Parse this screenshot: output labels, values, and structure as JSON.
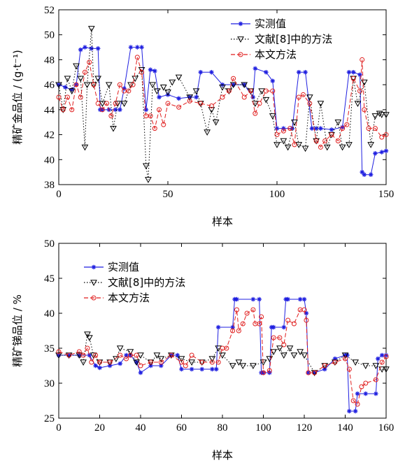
{
  "chart_data": [
    {
      "type": "line",
      "xlabel": "样本",
      "ylabel": "精矿金品位 / (g·t⁻¹)",
      "xlim": [
        0,
        150
      ],
      "ylim": [
        38,
        52
      ],
      "xticks": [
        0,
        50,
        100,
        150
      ],
      "yticks": [
        38,
        40,
        42,
        44,
        46,
        48,
        50,
        52
      ],
      "legend_position": "top-right",
      "series": [
        {
          "name": "实测值",
          "color": "#1f1fe0",
          "marker": "asterisk",
          "dash": "solid",
          "x": [
            0,
            3,
            6,
            8,
            10,
            12,
            15,
            18,
            19,
            20,
            23,
            26,
            28,
            30,
            33,
            36,
            38,
            40,
            42,
            44,
            46,
            50,
            55,
            60,
            63,
            65,
            70,
            75,
            80,
            85,
            89,
            90,
            95,
            98,
            100,
            103,
            107,
            110,
            113,
            116,
            118,
            120,
            125,
            130,
            133,
            135,
            138,
            139,
            140,
            143,
            145,
            148,
            150
          ],
          "y": [
            46,
            45.8,
            45.6,
            46,
            48.8,
            49,
            48.9,
            48.9,
            44,
            44,
            44,
            44,
            44,
            45.7,
            49,
            49,
            49,
            44,
            47.2,
            47.1,
            45,
            45.2,
            44.9,
            45,
            45,
            47,
            47,
            46,
            46,
            46,
            45,
            47.3,
            47,
            46.3,
            42.5,
            42.5,
            42.5,
            47,
            47,
            42.5,
            42.5,
            42.5,
            42.4,
            42.6,
            47,
            47,
            46.8,
            39,
            38.8,
            38.8,
            40.5,
            40.6,
            40.7
          ]
        },
        {
          "name": "文献[8]中的方法",
          "color": "#000000",
          "marker": "triangle",
          "dash": "dots",
          "x": [
            0,
            2,
            4,
            6,
            8,
            10,
            12,
            13,
            15,
            16,
            18,
            20,
            23,
            25,
            27,
            30,
            33,
            35,
            38,
            40,
            41,
            43,
            45,
            48,
            50,
            52,
            55,
            60,
            63,
            65,
            68,
            70,
            72,
            75,
            78,
            80,
            85,
            88,
            90,
            93,
            95,
            98,
            100,
            103,
            105,
            108,
            110,
            113,
            115,
            118,
            120,
            123,
            125,
            128,
            130,
            133,
            135,
            137,
            140,
            143,
            145,
            147,
            148,
            150
          ],
          "y": [
            46,
            44,
            46.5,
            45.5,
            47.5,
            46.5,
            41,
            46,
            50.5,
            46,
            46.5,
            44.5,
            46,
            42.5,
            44.5,
            44.5,
            46,
            46.5,
            47.2,
            39.5,
            38.4,
            46,
            45.5,
            45.8,
            45.4,
            46.2,
            46.6,
            45,
            45.5,
            44.5,
            42.2,
            44,
            43,
            45.8,
            45.5,
            46,
            46,
            45.5,
            44.5,
            45.5,
            44.8,
            43.5,
            41.2,
            41.5,
            41,
            43,
            41.2,
            40.9,
            45,
            41.5,
            44.5,
            41,
            42,
            43,
            41,
            41.2,
            46.5,
            44.5,
            46.2,
            41.2,
            43.5,
            43.7,
            43.6,
            43.6
          ]
        },
        {
          "name": "本文方法",
          "color": "#e01f1f",
          "marker": "circle",
          "dash": "dashed",
          "x": [
            0,
            2,
            4,
            6,
            8,
            10,
            12,
            14,
            16,
            18,
            20,
            22,
            24,
            26,
            28,
            30,
            32,
            34,
            36,
            38,
            40,
            42,
            44,
            46,
            48,
            50,
            55,
            60,
            65,
            70,
            75,
            78,
            80,
            85,
            88,
            90,
            92,
            95,
            98,
            100,
            103,
            106,
            108,
            110,
            112,
            115,
            118,
            120,
            122,
            125,
            128,
            130,
            132,
            135,
            138,
            139,
            140,
            142,
            145,
            148,
            150
          ],
          "y": [
            45,
            44,
            45,
            44,
            46,
            45,
            47,
            47.8,
            46,
            44.5,
            44,
            44.5,
            43.5,
            44.5,
            46,
            45.5,
            45.5,
            46,
            48.2,
            47,
            43.5,
            43.5,
            42.5,
            44,
            42.8,
            44.5,
            44.2,
            44.7,
            44.5,
            44.3,
            45,
            45.5,
            46.5,
            45,
            45.5,
            43.7,
            44.5,
            45.5,
            45.5,
            42,
            42.3,
            42.5,
            41.2,
            45,
            45.2,
            44.5,
            41.5,
            41,
            41.5,
            42,
            41.5,
            42.5,
            42.8,
            46.5,
            45.5,
            48,
            44,
            42.5,
            42.5,
            41.8,
            42
          ]
        }
      ]
    },
    {
      "type": "line",
      "xlabel": "样本",
      "ylabel": "精矿锑品位 / %",
      "xlim": [
        0,
        160
      ],
      "ylim": [
        25,
        50
      ],
      "xticks": [
        0,
        20,
        40,
        60,
        80,
        100,
        120,
        140,
        160
      ],
      "yticks": [
        25,
        30,
        35,
        40,
        45,
        50
      ],
      "legend_position": "top-left",
      "series": [
        {
          "name": "实测值",
          "color": "#1f1fe0",
          "marker": "asterisk",
          "dash": "solid",
          "x": [
            0,
            5,
            10,
            15,
            18,
            20,
            25,
            30,
            33,
            35,
            38,
            40,
            45,
            50,
            55,
            58,
            60,
            65,
            70,
            75,
            77,
            78,
            85,
            86,
            87,
            95,
            98,
            99,
            100,
            103,
            104,
            105,
            110,
            111,
            112,
            118,
            120,
            121,
            122,
            125,
            130,
            135,
            140,
            141,
            142,
            145,
            146,
            150,
            155,
            156,
            158,
            160
          ],
          "y": [
            34,
            34,
            34,
            34,
            32.5,
            32.2,
            32.5,
            32.8,
            34,
            34,
            33,
            31.5,
            32.5,
            32.5,
            34,
            34,
            32,
            32,
            32,
            32,
            32,
            38,
            38,
            42,
            42,
            42,
            42,
            31.5,
            31.5,
            31.5,
            38,
            38,
            38,
            42,
            42,
            42,
            42,
            40,
            31.5,
            31.5,
            32,
            33.5,
            34,
            34,
            26,
            26,
            28.5,
            28.5,
            28.5,
            33.5,
            34,
            34
          ]
        },
        {
          "name": "文献[8]中的方法",
          "color": "#000000",
          "marker": "triangle",
          "dash": "dots",
          "x": [
            0,
            5,
            10,
            12,
            14,
            15,
            17,
            20,
            25,
            28,
            30,
            35,
            38,
            40,
            45,
            48,
            50,
            55,
            60,
            65,
            70,
            75,
            78,
            80,
            85,
            88,
            90,
            95,
            100,
            103,
            105,
            108,
            110,
            113,
            115,
            118,
            120,
            125,
            130,
            135,
            140,
            145,
            150,
            155,
            158,
            160
          ],
          "y": [
            34,
            34,
            34,
            33,
            37,
            36.5,
            34,
            33,
            33,
            33.5,
            35,
            34.5,
            33,
            34,
            33,
            34,
            33.5,
            34,
            33.5,
            33,
            33,
            33.5,
            35,
            34,
            32.5,
            33,
            32.5,
            32.5,
            33,
            33.5,
            34.5,
            35,
            34,
            35,
            34,
            34.5,
            34,
            31.5,
            32.5,
            33,
            34,
            33,
            32.5,
            32.5,
            32,
            32
          ]
        },
        {
          "name": "本文方法",
          "color": "#e01f1f",
          "marker": "circle",
          "dash": "dashed",
          "x": [
            0,
            5,
            10,
            12,
            14,
            16,
            18,
            20,
            25,
            30,
            33,
            35,
            38,
            40,
            45,
            50,
            55,
            60,
            62,
            65,
            70,
            75,
            78,
            80,
            82,
            85,
            87,
            88,
            90,
            92,
            95,
            96,
            98,
            99,
            100,
            103,
            105,
            108,
            110,
            112,
            115,
            118,
            120,
            121,
            122,
            125,
            130,
            135,
            140,
            142,
            144,
            146,
            148,
            150,
            155,
            158,
            160
          ],
          "y": [
            34.5,
            34,
            34.5,
            34,
            35,
            33,
            34,
            33,
            33,
            34,
            33.5,
            34,
            34,
            32.5,
            33,
            33,
            34,
            33,
            32.5,
            34,
            33,
            33,
            33,
            35,
            35,
            37.5,
            40.5,
            37.5,
            38.5,
            40,
            40.5,
            38.5,
            38.5,
            39.5,
            31.5,
            31.8,
            36.5,
            36.5,
            35.5,
            39,
            38.5,
            40.5,
            40.5,
            39,
            31.5,
            31.5,
            32.5,
            33,
            33.5,
            32,
            27.5,
            27,
            29.5,
            30,
            30.5,
            33,
            33.8
          ]
        }
      ]
    }
  ]
}
